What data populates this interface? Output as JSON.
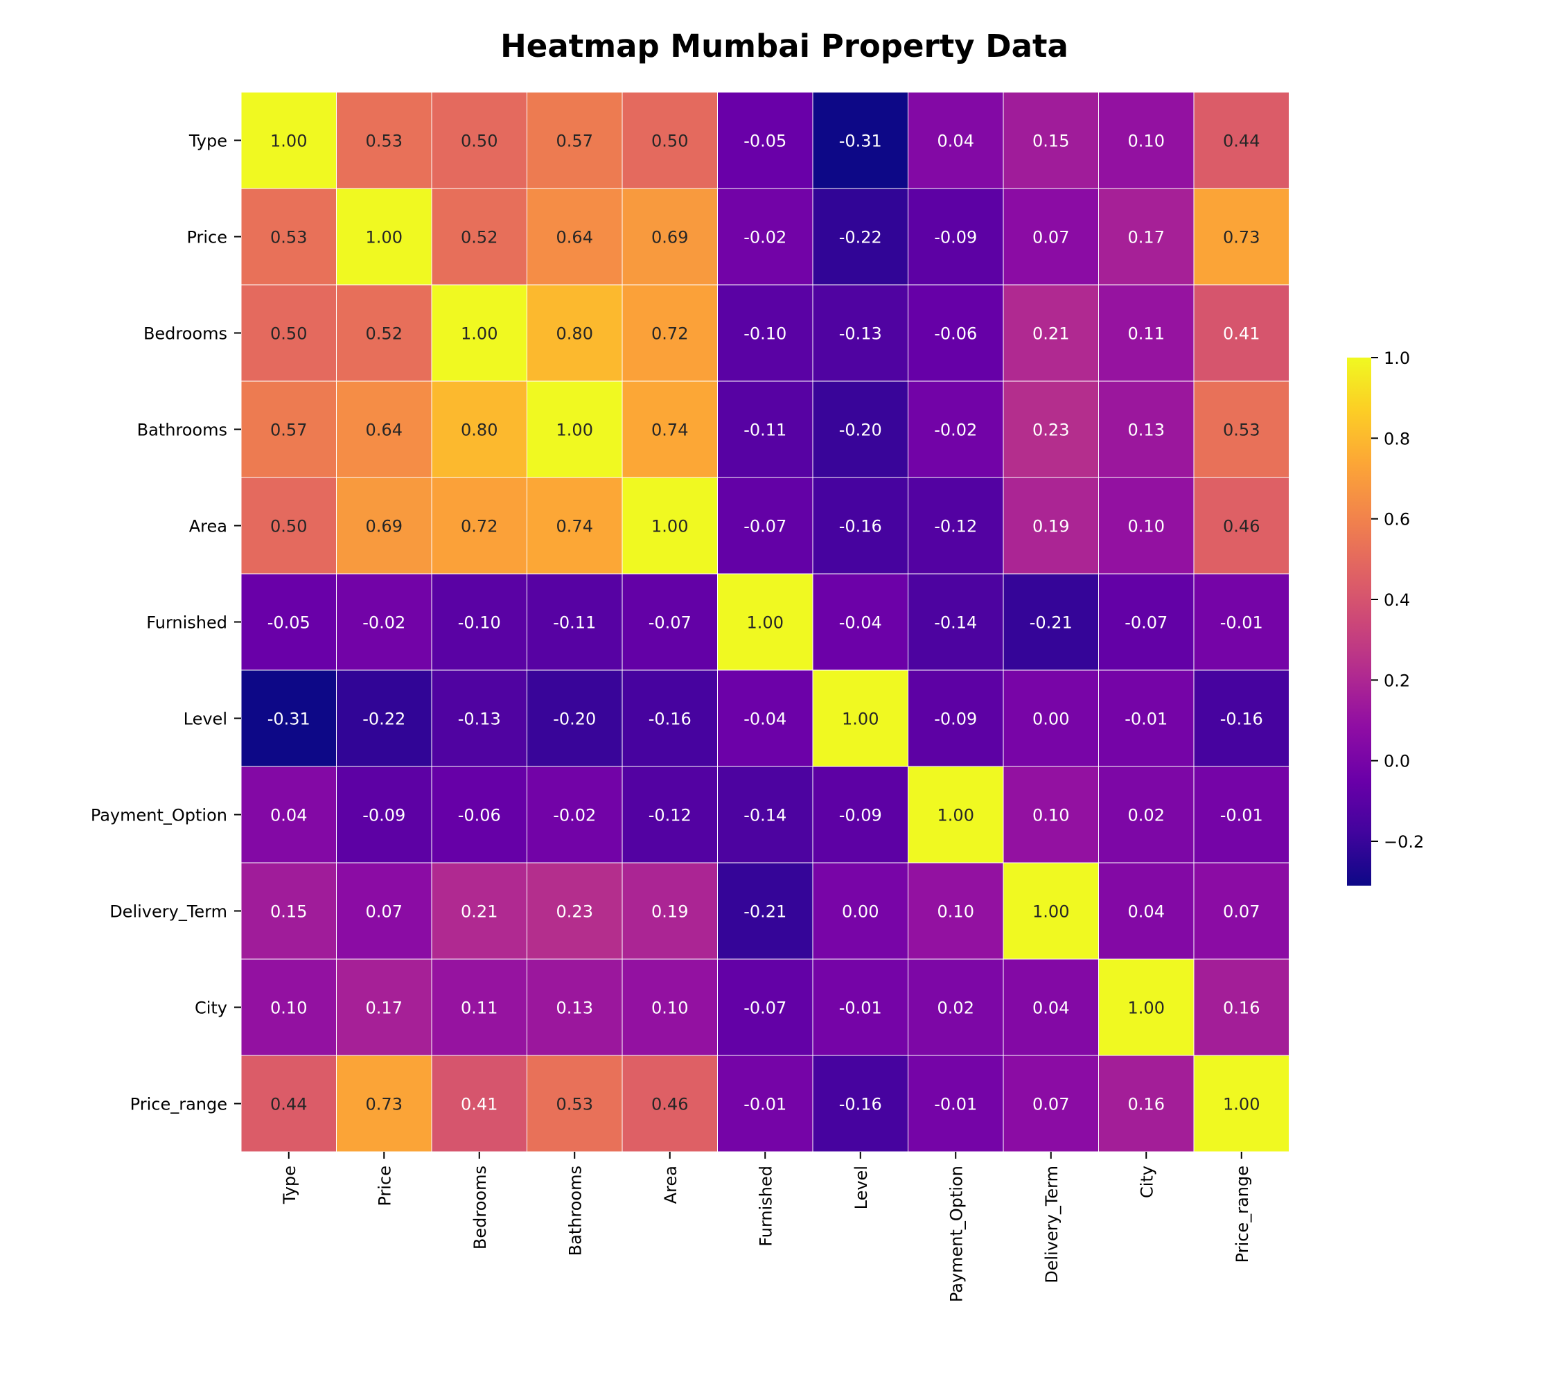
{
  "chart_data": {
    "type": "heatmap",
    "title": "Heatmap Mumbai Property Data",
    "colormap": "plasma",
    "labels": [
      "Type",
      "Price",
      "Bedrooms",
      "Bathrooms",
      "Area",
      "Furnished",
      "Level",
      "Payment_Option",
      "Delivery_Term",
      "City",
      "Price_range"
    ],
    "matrix": [
      [
        1.0,
        0.53,
        0.5,
        0.57,
        0.5,
        -0.05,
        -0.31,
        0.04,
        0.15,
        0.1,
        0.44
      ],
      [
        0.53,
        1.0,
        0.52,
        0.64,
        0.69,
        -0.02,
        -0.22,
        -0.09,
        0.07,
        0.17,
        0.73
      ],
      [
        0.5,
        0.52,
        1.0,
        0.8,
        0.72,
        -0.1,
        -0.13,
        -0.06,
        0.21,
        0.11,
        0.41
      ],
      [
        0.57,
        0.64,
        0.8,
        1.0,
        0.74,
        -0.11,
        -0.2,
        -0.02,
        0.23,
        0.13,
        0.53
      ],
      [
        0.5,
        0.69,
        0.72,
        0.74,
        1.0,
        -0.07,
        -0.16,
        -0.12,
        0.19,
        0.1,
        0.46
      ],
      [
        -0.05,
        -0.02,
        -0.1,
        -0.11,
        -0.07,
        1.0,
        -0.04,
        -0.14,
        -0.21,
        -0.07,
        -0.01
      ],
      [
        -0.31,
        -0.22,
        -0.13,
        -0.2,
        -0.16,
        -0.04,
        1.0,
        -0.09,
        0.0,
        -0.01,
        -0.16
      ],
      [
        0.04,
        -0.09,
        -0.06,
        -0.02,
        -0.12,
        -0.14,
        -0.09,
        1.0,
        0.1,
        0.02,
        -0.01
      ],
      [
        0.15,
        0.07,
        0.21,
        0.23,
        0.19,
        -0.21,
        0.0,
        0.1,
        1.0,
        0.04,
        0.07
      ],
      [
        0.1,
        0.17,
        0.11,
        0.13,
        0.1,
        -0.07,
        -0.01,
        0.02,
        0.04,
        1.0,
        0.16
      ],
      [
        0.44,
        0.73,
        0.41,
        0.53,
        0.46,
        -0.01,
        -0.16,
        -0.01,
        0.07,
        0.16,
        1.0
      ]
    ],
    "value_format": "0.00",
    "vmin": -0.31,
    "vmax": 1.0,
    "colorbar": {
      "ticks": [
        -0.2,
        0.0,
        0.2,
        0.4,
        0.6,
        0.8,
        1.0
      ],
      "tick_labels": [
        "−0.2",
        "0.0",
        "0.2",
        "0.4",
        "0.6",
        "0.8",
        "1.0"
      ]
    },
    "cell_border_color": "#ffffff",
    "grid": false
  }
}
